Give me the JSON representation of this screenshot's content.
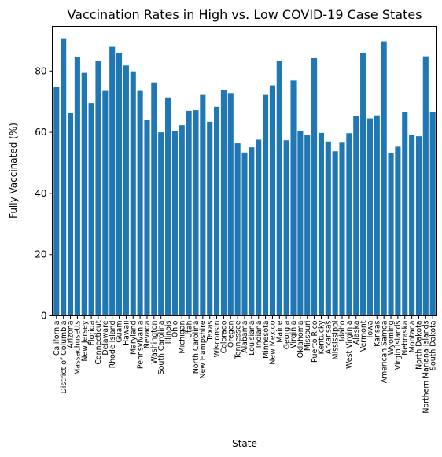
{
  "chart_data": {
    "type": "bar",
    "title": "Vaccination Rates in High vs. Low COVID-19 Case States",
    "xlabel": "State",
    "ylabel": "Fully Vaccinated (%)",
    "ylim": [
      0,
      94.6
    ],
    "yticks": [
      0,
      20,
      40,
      60,
      80
    ],
    "bar_color": "#1f77b4",
    "grid": false,
    "categories": [
      "California",
      "District of Columbia",
      "Arizona",
      "Massachusetts",
      "New Jersey",
      "Florida",
      "Connecticut",
      "Delaware",
      "Rhode Island",
      "Guam",
      "Hawaii",
      "Maryland",
      "Pennsylvania",
      "Nevada",
      "Washington",
      "South Carolina",
      "Illinois",
      "Ohio",
      "Michigan",
      "Utah",
      "North Carolina",
      "New Hampshire",
      "Texas",
      "Wisconsin",
      "Colorado",
      "Oregon",
      "Tennessee",
      "Alabama",
      "Louisiana",
      "Indiana",
      "Minnesota",
      "New Mexico",
      "Maine",
      "Georgia",
      "Virginia",
      "Oklahoma",
      "Missouri",
      "Puerto Rico",
      "Kentucky",
      "Arkansas",
      "Mississippi",
      "Idaho",
      "West Virginia",
      "Alaska",
      "Vermont",
      "Iowa",
      "Kansas",
      "American Samoa",
      "Wyoming",
      "Virgin Islands",
      "Nebraska",
      "Montana",
      "North Dakota",
      "Northern Mariana Islands",
      "South Dakota"
    ],
    "values": [
      74.8,
      90.7,
      66.2,
      84.6,
      79.4,
      69.5,
      83.3,
      73.5,
      87.9,
      86.0,
      81.8,
      79.9,
      73.5,
      63.9,
      76.3,
      60.0,
      71.4,
      60.5,
      62.3,
      67.0,
      67.2,
      72.2,
      63.4,
      68.3,
      73.7,
      72.8,
      56.4,
      53.4,
      55.1,
      57.6,
      72.2,
      75.3,
      83.4,
      57.4,
      76.9,
      60.5,
      59.2,
      84.2,
      59.8,
      57.0,
      53.8,
      56.6,
      59.7,
      65.2,
      85.8,
      64.5,
      65.5,
      89.7,
      53.1,
      55.3,
      66.5,
      59.2,
      58.7,
      84.8,
      66.5
    ]
  }
}
